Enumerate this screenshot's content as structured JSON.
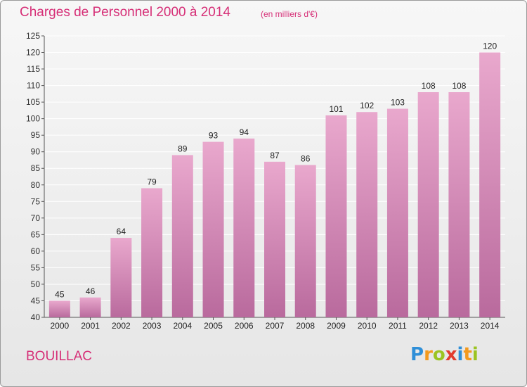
{
  "header": {
    "title": "Charges de Personnel 2000 à 2014",
    "subtitle": "(en milliers d'€)"
  },
  "footer": {
    "place": "BOUILLAC",
    "logo_text": "Proxiti",
    "logo_letters": [
      {
        "char": "P",
        "color": "#2f8fd8"
      },
      {
        "char": "r",
        "color": "#f39a1e"
      },
      {
        "char": "o",
        "color": "#9bc421"
      },
      {
        "char": "x",
        "color": "#e23b2e"
      },
      {
        "char": "i",
        "color": "#2f8fd8"
      },
      {
        "char": "t",
        "color": "#f39a1e"
      },
      {
        "char": "i",
        "color": "#9bc421"
      }
    ]
  },
  "colors": {
    "accent": "#d62f77",
    "bar_top": "#e9a8cd",
    "bar_bottom": "#b96a9d",
    "grid": "#ffffff"
  },
  "chart_data": {
    "type": "bar",
    "title": "Charges de Personnel 2000 à 2014",
    "subtitle": "(en milliers d'€)",
    "xlabel": "",
    "ylabel": "",
    "categories": [
      "2000",
      "2001",
      "2002",
      "2003",
      "2004",
      "2005",
      "2006",
      "2007",
      "2008",
      "2009",
      "2010",
      "2011",
      "2012",
      "2013",
      "2014"
    ],
    "values": [
      45,
      46,
      64,
      79,
      89,
      93,
      94,
      87,
      86,
      101,
      102,
      103,
      108,
      108,
      120
    ],
    "ylim": [
      40,
      125
    ],
    "yticks": [
      40,
      45,
      50,
      55,
      60,
      65,
      70,
      75,
      80,
      85,
      90,
      95,
      100,
      105,
      110,
      115,
      120,
      125
    ],
    "grid": true,
    "data_labels": true
  }
}
